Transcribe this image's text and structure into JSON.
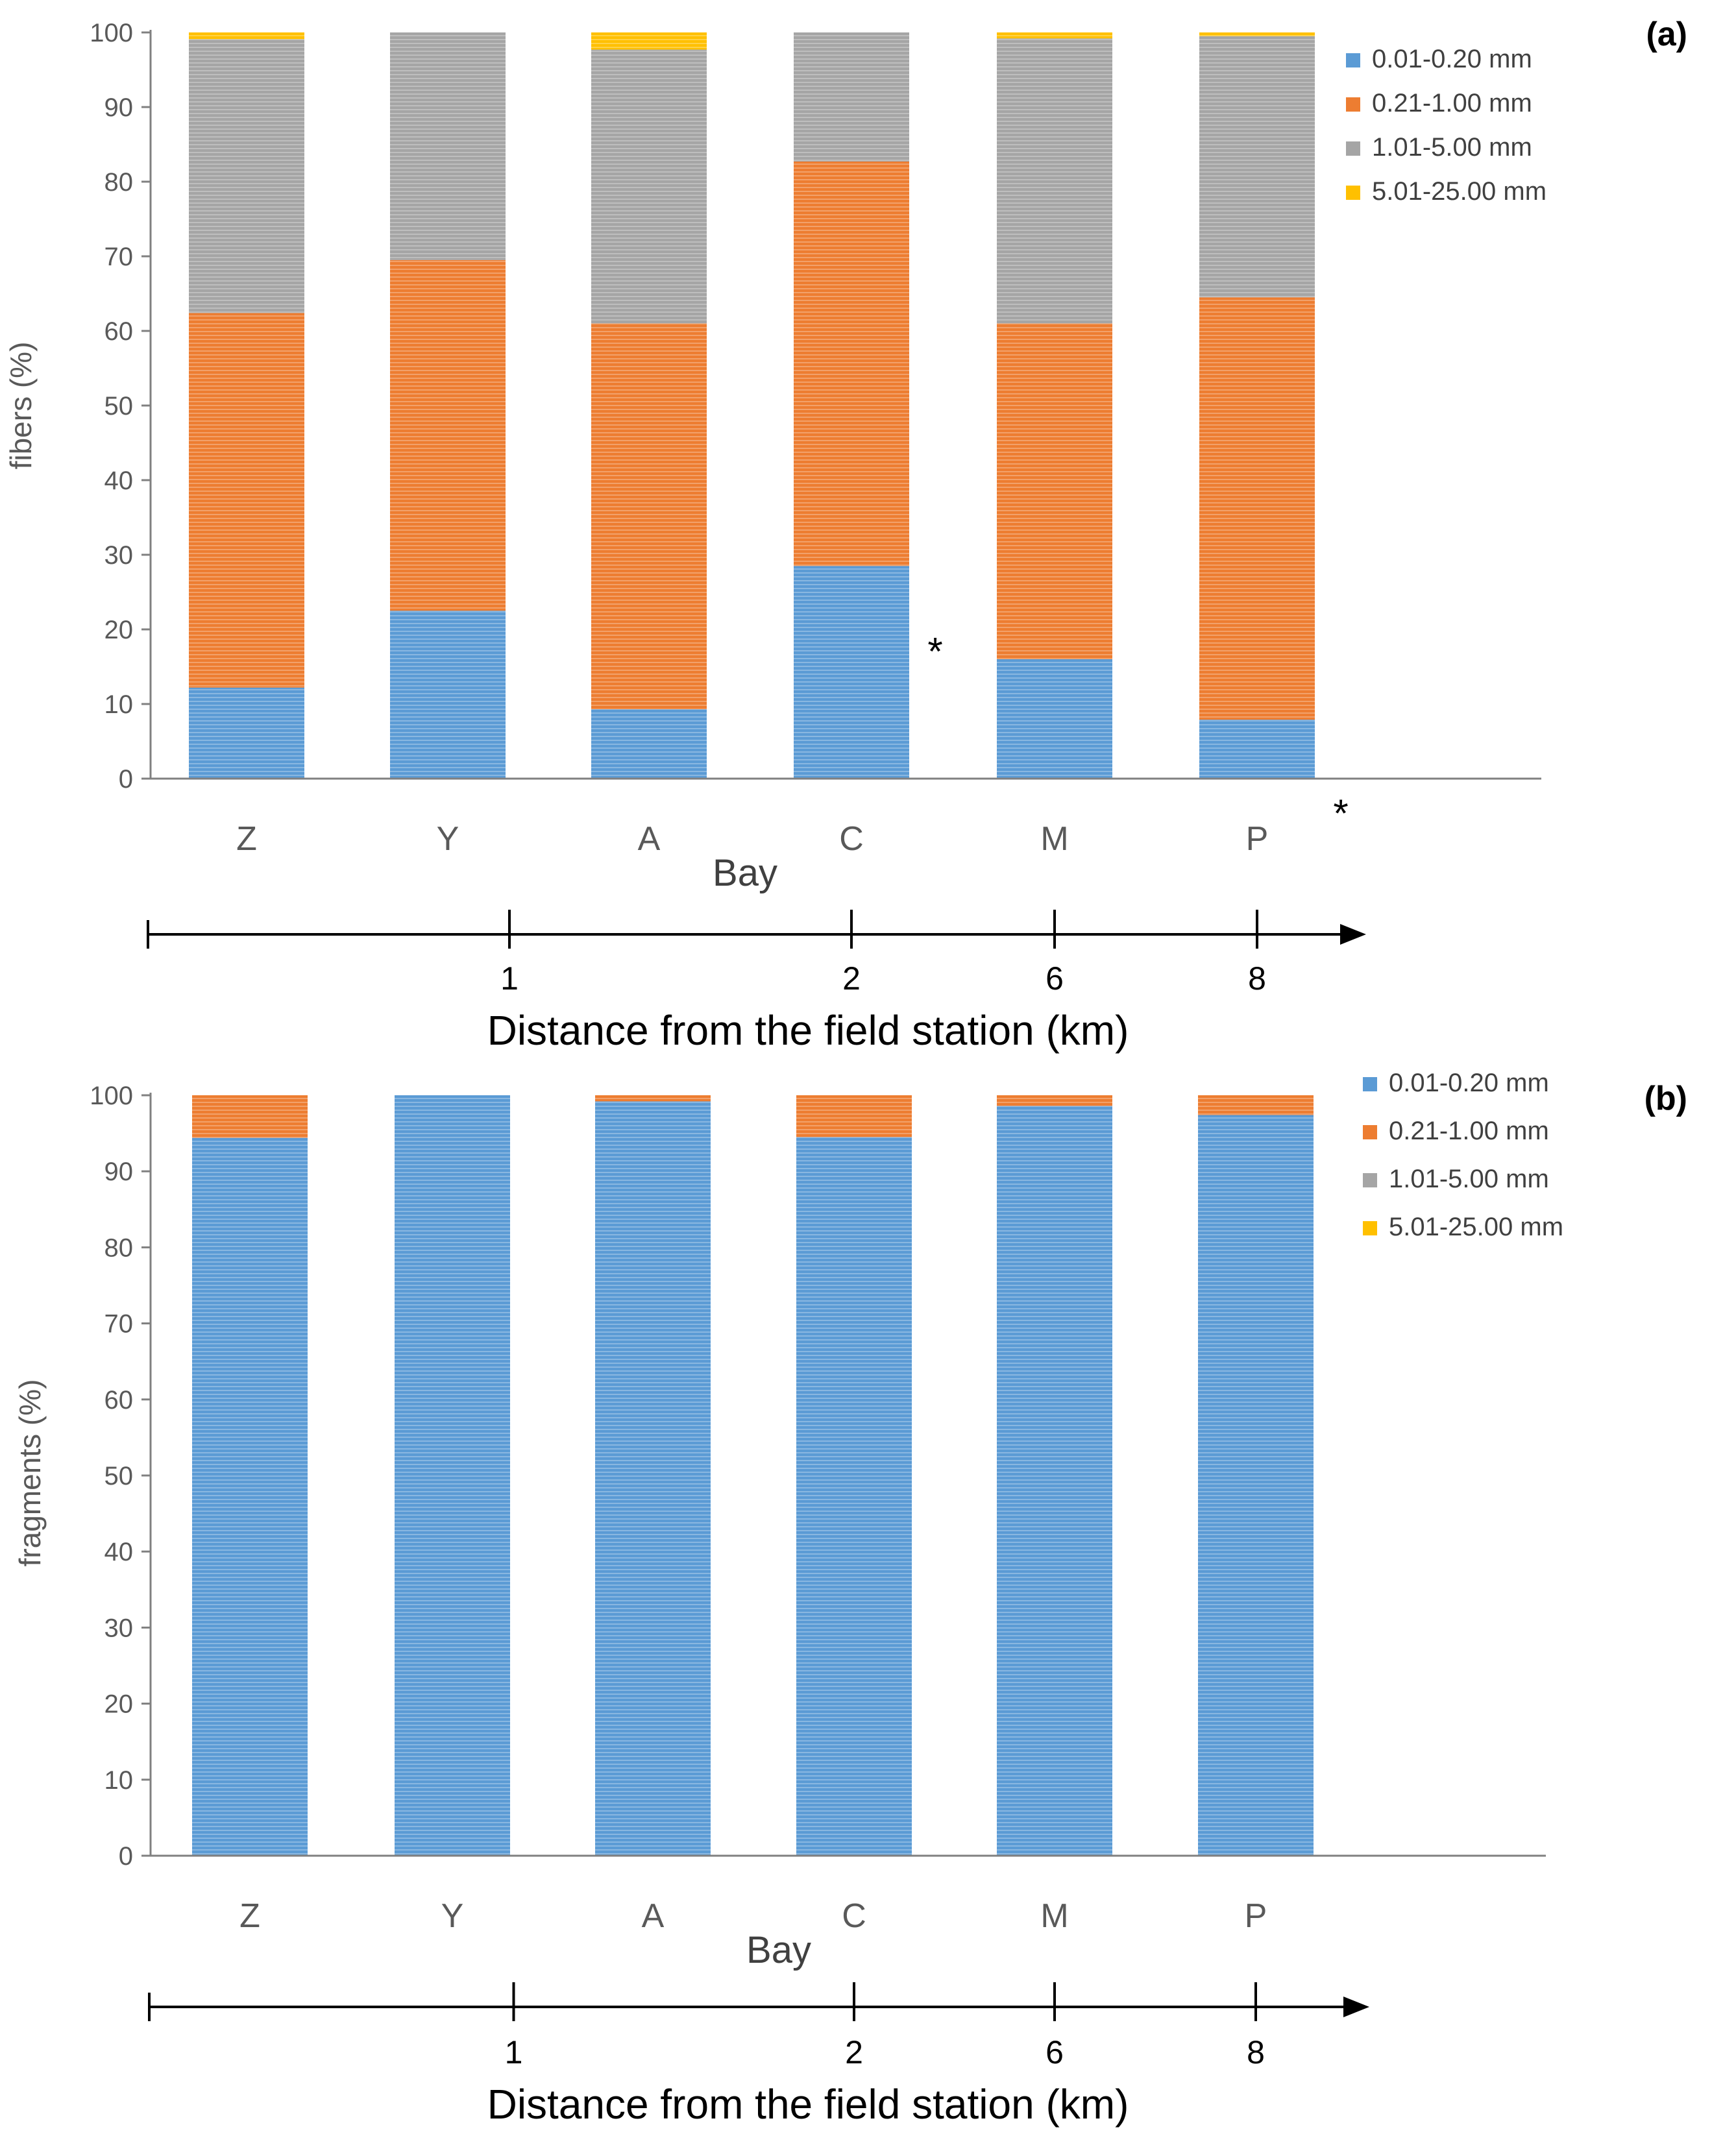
{
  "chart_data": [
    {
      "type": "bar",
      "stacked": true,
      "panel_label": "(a)",
      "ylabel": "fibers (%)",
      "xlabel": "Bay",
      "ylim": [
        0,
        100
      ],
      "yticks": [
        "0",
        "10",
        "20",
        "30",
        "40",
        "50",
        "60",
        "70",
        "80",
        "90",
        "100"
      ],
      "categories": [
        "Z",
        "Y",
        "A",
        "C",
        "M",
        "P"
      ],
      "series": [
        {
          "name": "0.01-0.20 mm",
          "color": "#5B9BD5",
          "values": [
            12.2,
            22.5,
            9.3,
            28.5,
            16.0,
            7.9
          ]
        },
        {
          "name": "0.21-1.00 mm",
          "color": "#ED7D31",
          "values": [
            50.2,
            47.0,
            51.7,
            54.2,
            45.0,
            56.6
          ]
        },
        {
          "name": "1.01-5.00 mm",
          "color": "#A5A5A5",
          "values": [
            36.7,
            30.5,
            36.7,
            17.3,
            38.2,
            35.0
          ]
        },
        {
          "name": "5.01-25.00 mm",
          "color": "#FFC000",
          "values": [
            0.9,
            0.0,
            2.3,
            0.0,
            0.8,
            0.5
          ]
        }
      ],
      "annotations": [
        {
          "text": "*",
          "category": "C"
        },
        {
          "text": "*",
          "category": "P"
        }
      ],
      "distance_axis": {
        "title": "Distance from the field station (km)",
        "ticks": [
          {
            "label": "1",
            "category_between": [
              "Y",
              "A"
            ]
          },
          {
            "label": "2",
            "category": "C"
          },
          {
            "label": "6",
            "category": "M"
          },
          {
            "label": "8",
            "category": "P"
          }
        ]
      }
    },
    {
      "type": "bar",
      "stacked": true,
      "panel_label": "(b)",
      "ylabel": "fragments (%)",
      "xlabel": "Bay",
      "ylim": [
        0,
        100
      ],
      "yticks": [
        "0",
        "10",
        "20",
        "30",
        "40",
        "50",
        "60",
        "70",
        "80",
        "90",
        "100"
      ],
      "categories": [
        "Z",
        "Y",
        "A",
        "C",
        "M",
        "P"
      ],
      "series": [
        {
          "name": "0.01-0.20 mm",
          "color": "#5B9BD5",
          "values": [
            94.4,
            100.0,
            99.2,
            94.5,
            98.6,
            97.4
          ]
        },
        {
          "name": "0.21-1.00 mm",
          "color": "#ED7D31",
          "values": [
            5.6,
            0.0,
            0.8,
            5.5,
            1.4,
            2.6
          ]
        },
        {
          "name": "1.01-5.00 mm",
          "color": "#A5A5A5",
          "values": [
            0,
            0,
            0,
            0,
            0,
            0
          ]
        },
        {
          "name": "5.01-25.00 mm",
          "color": "#FFC000",
          "values": [
            0,
            0,
            0,
            0,
            0,
            0
          ]
        }
      ],
      "annotations": [],
      "distance_axis": {
        "title": "Distance from the field station (km)",
        "ticks": [
          {
            "label": "1",
            "category_between": [
              "Y",
              "A"
            ]
          },
          {
            "label": "2",
            "category": "C"
          },
          {
            "label": "6",
            "category": "M"
          },
          {
            "label": "8",
            "category": "P"
          }
        ]
      }
    }
  ]
}
